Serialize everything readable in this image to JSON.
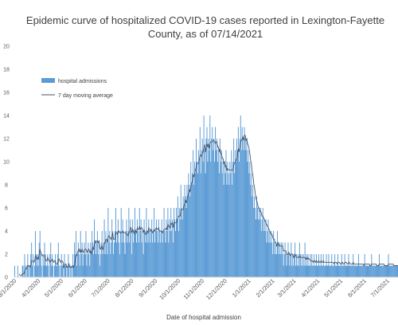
{
  "chart_data": {
    "type": "bar",
    "title_line1": "Epidemic curve of hospitalized COVID-19 cases reported in Lexington-Fayette",
    "title_line2": "County, as of 07/14/2021",
    "xlabel": "Date of hospital admission",
    "ylabel": "",
    "ylim": [
      0,
      20
    ],
    "yticks": [
      "0",
      "2",
      "4",
      "6",
      "8",
      "10",
      "12",
      "14",
      "16",
      "18",
      "20"
    ],
    "x_start": "2020-03-01",
    "x_end": "2021-07-14",
    "xticks": [
      "3/1/2020",
      "4/1/2020",
      "5/1/2020",
      "6/1/2020",
      "7/1/2020",
      "8/1/2020",
      "9/1/2020",
      "10/1/2020",
      "11/1/2020",
      "12/1/2020",
      "1/1/2021",
      "2/1/2021",
      "3/1/2021",
      "4/1/2021",
      "5/1/2021",
      "6/1/2021",
      "7/1/2021"
    ],
    "grid": false,
    "legend_position": "top-left",
    "series": [
      {
        "name": "hospital admissions",
        "kind": "bar",
        "color": "#5b9bd5",
        "values": [
          1,
          0,
          0,
          0,
          1,
          0,
          0,
          0,
          0,
          0,
          1,
          1,
          0,
          2,
          1,
          0,
          1,
          2,
          1,
          0,
          1,
          2,
          3,
          1,
          2,
          0,
          1,
          4,
          2,
          1,
          2,
          1,
          3,
          4,
          2,
          1,
          0,
          2,
          1,
          3,
          2,
          1,
          1,
          2,
          1,
          0,
          2,
          3,
          1,
          2,
          1,
          0,
          1,
          2,
          1,
          1,
          2,
          3,
          1,
          0,
          1,
          2,
          1,
          1,
          0,
          2,
          1,
          1,
          0,
          1,
          2,
          1,
          0,
          1,
          1,
          0,
          2,
          1,
          3,
          2,
          4,
          1,
          2,
          3,
          2,
          1,
          4,
          2,
          3,
          1,
          2,
          3,
          2,
          4,
          1,
          2,
          3,
          2,
          1,
          3,
          2,
          4,
          3,
          2,
          5,
          3,
          2,
          3,
          4,
          2,
          3,
          1,
          2,
          3,
          4,
          2,
          3,
          5,
          2,
          4,
          3,
          2,
          6,
          3,
          4,
          2,
          3,
          5,
          4,
          2,
          3,
          4,
          6,
          3,
          4,
          5,
          3,
          2,
          4,
          6,
          3,
          5,
          4,
          3,
          2,
          4,
          5,
          3,
          4,
          6,
          3,
          5,
          4,
          2,
          5,
          3,
          4,
          6,
          4,
          3,
          5,
          4,
          3,
          6,
          4,
          5,
          3,
          4,
          2,
          5,
          4,
          3,
          6,
          4,
          3,
          5,
          4,
          3,
          4,
          5,
          3,
          4,
          6,
          3,
          4,
          5,
          4,
          3,
          5,
          4,
          3,
          4,
          5,
          3,
          4,
          6,
          4,
          3,
          5,
          4,
          6,
          3,
          5,
          4,
          6,
          4,
          5,
          3,
          6,
          5,
          4,
          6,
          5,
          7,
          4,
          6,
          5,
          8,
          6,
          5,
          7,
          6,
          8,
          7,
          6,
          8,
          7,
          9,
          8,
          7,
          10,
          8,
          9,
          11,
          8,
          10,
          9,
          12,
          10,
          9,
          11,
          10,
          13,
          9,
          11,
          12,
          10,
          14,
          11,
          9,
          12,
          13,
          10,
          12,
          11,
          14,
          10,
          12,
          13,
          11,
          12,
          10,
          13,
          11,
          12,
          10,
          11,
          9,
          12,
          10,
          11,
          9,
          10,
          8,
          10,
          9,
          11,
          8,
          10,
          9,
          8,
          10,
          9,
          11,
          8,
          10,
          12,
          9,
          11,
          10,
          12,
          11,
          13,
          10,
          12,
          14,
          11,
          13,
          12,
          11,
          13,
          12,
          11,
          12,
          10,
          11,
          9,
          10,
          8,
          9,
          7,
          8,
          6,
          7,
          6,
          5,
          7,
          6,
          5,
          6,
          5,
          6,
          4,
          5,
          6,
          4,
          5,
          4,
          5,
          3,
          4,
          5,
          3,
          4,
          3,
          4,
          3,
          2,
          4,
          3,
          2,
          3,
          2,
          4,
          3,
          2,
          3,
          2,
          3,
          2,
          3,
          1,
          2,
          3,
          2,
          1,
          2,
          3,
          2,
          1,
          2,
          3,
          1,
          2,
          1,
          2,
          3,
          1,
          2,
          1,
          2,
          1,
          3,
          2,
          1,
          2,
          1,
          2,
          1,
          3,
          1,
          2,
          1,
          2,
          1,
          1,
          2,
          1,
          2,
          1,
          1,
          2,
          1,
          1,
          2,
          1,
          1,
          2,
          1,
          1,
          2,
          1,
          1,
          2,
          1,
          1,
          1,
          2,
          1,
          1,
          2,
          1,
          1,
          1,
          2,
          1,
          1,
          1,
          2,
          1,
          1,
          1,
          2,
          1,
          1,
          1,
          1,
          2,
          1,
          1,
          1,
          2,
          1,
          1,
          1,
          1,
          2,
          1,
          1,
          1,
          1,
          1,
          2,
          1,
          1,
          1,
          1,
          1,
          1,
          2,
          1,
          1,
          1,
          1,
          1,
          1,
          1,
          2,
          1,
          1,
          1,
          1,
          1,
          1,
          1,
          1,
          2,
          1,
          1,
          1,
          1,
          1,
          1,
          1,
          1,
          1,
          2,
          1,
          1,
          1,
          1,
          1,
          1,
          1,
          1,
          1,
          1,
          1,
          2,
          1,
          1,
          1,
          1,
          1,
          1,
          1,
          1,
          1,
          1,
          1,
          1,
          1,
          1,
          1,
          1,
          1,
          1,
          1,
          1,
          1,
          1,
          1,
          1,
          1,
          1,
          1,
          1,
          1,
          1,
          1,
          1
        ]
      },
      {
        "name": "7 day moving average",
        "kind": "line",
        "color": "#44546a",
        "computed_from": "hospital admissions",
        "window": 7
      }
    ]
  }
}
